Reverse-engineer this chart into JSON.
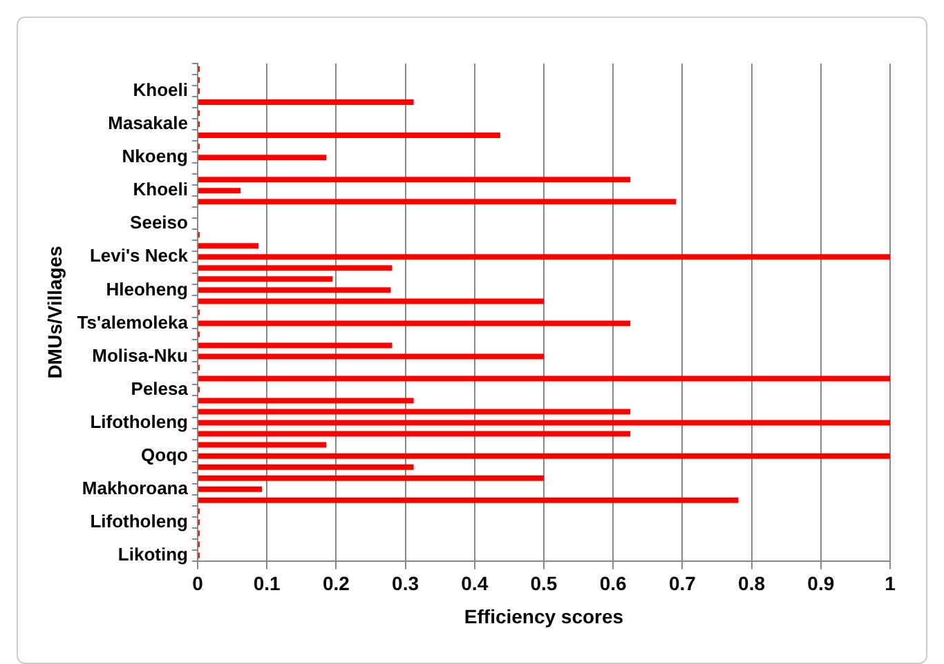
{
  "chart_data": {
    "type": "bar",
    "orientation": "horizontal",
    "xlabel": "Efficiency scores",
    "ylabel": "DMUs/Villages",
    "categories": [
      null,
      null,
      "Khoeli",
      null,
      null,
      "Masakale",
      null,
      null,
      "Nkoeng",
      null,
      null,
      "Khoeli",
      null,
      null,
      "Seeiso",
      null,
      null,
      "Levi's Neck",
      null,
      null,
      "Hleoheng",
      null,
      null,
      "Ts'alemoleka",
      null,
      null,
      "Molisa-Nku",
      null,
      null,
      "Pelesa",
      null,
      null,
      "Lifotholeng",
      null,
      null,
      "Qoqo",
      null,
      null,
      "Makhoroana",
      null,
      null,
      "Lifotholeng",
      null,
      null,
      "Likoting"
    ],
    "values": [
      0.003,
      0.003,
      0.003,
      0.312,
      0.003,
      0.003,
      0.437,
      0.003,
      0.186,
      null,
      0.625,
      0.062,
      0.691,
      null,
      null,
      0.003,
      0.088,
      1.0,
      0.281,
      0.195,
      0.279,
      0.5,
      0.003,
      0.625,
      0.003,
      0.281,
      0.5,
      0.003,
      1.0,
      0.003,
      0.312,
      0.625,
      1.0,
      0.625,
      0.186,
      1.0,
      0.312,
      0.5,
      0.093,
      0.781,
      0.003,
      0.003,
      0.003,
      0.003,
      0.003
    ],
    "color": "#ff0000",
    "xlim": [
      0,
      1
    ],
    "xticks": [
      0,
      0.1,
      0.2,
      0.3,
      0.4,
      0.5,
      0.6,
      0.7,
      0.8,
      0.9,
      1
    ],
    "grid": "x",
    "legend": false
  }
}
